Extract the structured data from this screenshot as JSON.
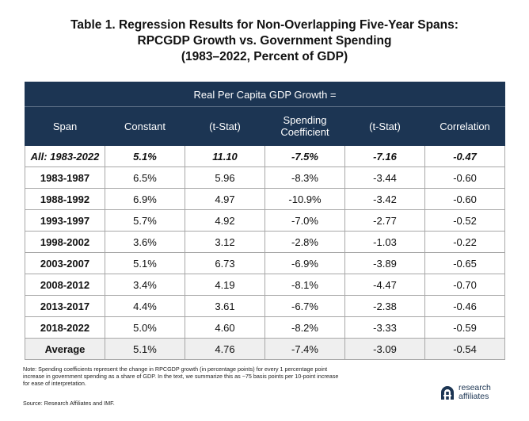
{
  "title_lines": [
    "Table 1. Regression Results for Non-Overlapping Five-Year Spans:",
    "RPCGDP Growth vs. Government Spending",
    "(1983–2022, Percent of GDP)"
  ],
  "table": {
    "banner": "Real Per Capita GDP Growth =",
    "headers": [
      "Span",
      "Constant",
      "(t-Stat)",
      "Spending Coefficient",
      "(t-Stat)",
      "Correlation"
    ],
    "header_spending_lines": [
      "Spending",
      "Coefficient"
    ],
    "rows": [
      [
        "All: 1983-2022",
        "5.1%",
        "11.10",
        "-7.5%",
        "-7.16",
        "-0.47"
      ],
      [
        "1983-1987",
        "6.5%",
        "5.96",
        "-8.3%",
        "-3.44",
        "-0.60"
      ],
      [
        "1988-1992",
        "6.9%",
        "4.97",
        "-10.9%",
        "-3.42",
        "-0.60"
      ],
      [
        "1993-1997",
        "5.7%",
        "4.92",
        "-7.0%",
        "-2.77",
        "-0.52"
      ],
      [
        "1998-2002",
        "3.6%",
        "3.12",
        "-2.8%",
        "-1.03",
        "-0.22"
      ],
      [
        "2003-2007",
        "5.1%",
        "6.73",
        "-6.9%",
        "-3.89",
        "-0.65"
      ],
      [
        "2008-2012",
        "3.4%",
        "4.19",
        "-8.1%",
        "-4.47",
        "-0.70"
      ],
      [
        "2013-2017",
        "4.4%",
        "3.61",
        "-6.7%",
        "-2.38",
        "-0.46"
      ],
      [
        "2018-2022",
        "5.0%",
        "4.60",
        "-8.2%",
        "-3.33",
        "-0.59"
      ],
      [
        "Average",
        "5.1%",
        "4.76",
        "-7.4%",
        "-3.09",
        "-0.54"
      ]
    ]
  },
  "note_lines": [
    "Note: Spending coefficients represent the change in RPCGDP growth (in percentage points) for every 1 percentage point",
    "increase in government spending as a share of GDP. In the text, we summarize this as ~75 basis points per 10-point increase",
    "for ease of interpretation."
  ],
  "source": "Source: Research Affiliates and IMF.",
  "logo": {
    "icon": "research-affiliates-logo-mark",
    "lines": [
      "research",
      "affiliates"
    ],
    "color": "#1c3553"
  },
  "colors": {
    "header_bg": "#1c3553",
    "header_text": "#ffffff",
    "average_row_bg": "#efefef"
  }
}
